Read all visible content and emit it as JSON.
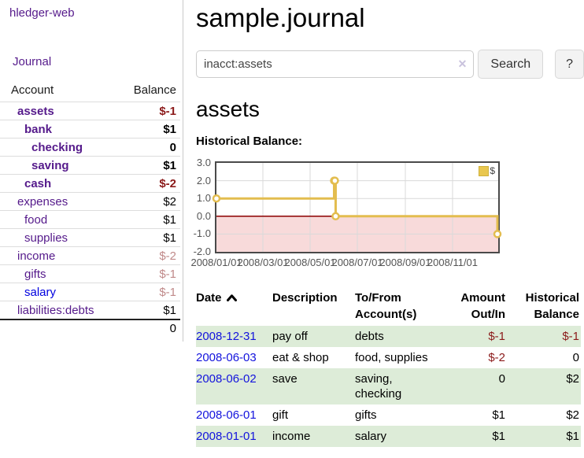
{
  "brand": {
    "title": "hledger-web"
  },
  "nav": {
    "journal": "Journal"
  },
  "sidebar": {
    "headers": {
      "account": "Account",
      "balance": "Balance"
    },
    "accounts": [
      {
        "name": "assets",
        "indent": 1,
        "bold": true,
        "balance": "$-1",
        "balance_class": "neg"
      },
      {
        "name": "bank",
        "indent": 2,
        "bold": true,
        "balance": "$1",
        "balance_class": ""
      },
      {
        "name": "checking",
        "indent": 3,
        "bold": true,
        "balance": "0",
        "balance_class": ""
      },
      {
        "name": "saving",
        "indent": 3,
        "bold": true,
        "balance": "$1",
        "balance_class": ""
      },
      {
        "name": "cash",
        "indent": 2,
        "bold": true,
        "balance": "$-2",
        "balance_class": "neg"
      },
      {
        "name": "expenses",
        "indent": 1,
        "bold": false,
        "balance": "$2",
        "balance_class": ""
      },
      {
        "name": "food",
        "indent": 2,
        "bold": false,
        "balance": "$1",
        "balance_class": ""
      },
      {
        "name": "supplies",
        "indent": 2,
        "bold": false,
        "balance": "$1",
        "balance_class": ""
      },
      {
        "name": "income",
        "indent": 1,
        "bold": false,
        "balance": "$-2",
        "balance_class": "negfaded"
      },
      {
        "name": "gifts",
        "indent": 2,
        "bold": false,
        "balance": "$-1",
        "balance_class": "negfaded"
      },
      {
        "name": "salary",
        "indent": 2,
        "bold": false,
        "balance": "$-1",
        "balance_class": "negfaded",
        "link": "blue"
      },
      {
        "name": "liabilities:debts",
        "indent": 1,
        "bold": false,
        "balance": "$1",
        "balance_class": ""
      }
    ],
    "total": "0"
  },
  "page": {
    "title": "sample.journal"
  },
  "search": {
    "value": "inacct:assets",
    "clear": "✕",
    "submit": "Search",
    "help": "?"
  },
  "account_view": {
    "title": "assets",
    "chart_heading": "Historical Balance:"
  },
  "chart_data": {
    "type": "line",
    "step": true,
    "title": "Historical Balance",
    "series": [
      {
        "name": "$",
        "points": [
          [
            "2008-01-01",
            1
          ],
          [
            "2008-06-01",
            2
          ],
          [
            "2008-06-02",
            2
          ],
          [
            "2008-06-03",
            0
          ],
          [
            "2008-12-31",
            -1
          ]
        ]
      }
    ],
    "x_start": "2008-01-01",
    "x_range_days": [
      0,
      364
    ],
    "x_ticks": [
      {
        "day": 0,
        "label": "2008/01/01"
      },
      {
        "day": 60,
        "label": "2008/03/01"
      },
      {
        "day": 121,
        "label": "2008/05/01"
      },
      {
        "day": 182,
        "label": "2008/07/01"
      },
      {
        "day": 244,
        "label": "2008/09/01"
      },
      {
        "day": 305,
        "label": "2008/11/01"
      }
    ],
    "y_ticks": [
      {
        "value": 3,
        "label": "3.0"
      },
      {
        "value": 2,
        "label": "2.0"
      },
      {
        "value": 1,
        "label": "1.0"
      },
      {
        "value": 0,
        "label": "0.0"
      },
      {
        "value": -1,
        "label": "-1.0"
      },
      {
        "value": -2,
        "label": "-2.0"
      }
    ],
    "ylim": [
      -2,
      3
    ],
    "legend": {
      "label": "$",
      "position": "top-right"
    },
    "colors": {
      "series": "#e3bd4f",
      "negative_region": "#f8dada",
      "zero_line": "#8b0000",
      "grid": "#d9d9d9",
      "border": "#4a4a4a"
    }
  },
  "register": {
    "headers": {
      "date": "Date",
      "description": "Description",
      "accounts": "To/From Account(s)",
      "amount": "Amount Out/In",
      "balance": "Historical Balance"
    },
    "sort": {
      "column": "date",
      "direction": "ascending"
    },
    "rows": [
      {
        "date": "2008-12-31",
        "description": "pay off",
        "accounts": "debts",
        "amount": "$-1",
        "amount_negative": true,
        "balance": "$-1",
        "balance_negative": true
      },
      {
        "date": "2008-06-03",
        "description": "eat & shop",
        "accounts": "food, supplies",
        "amount": "$-2",
        "amount_negative": true,
        "balance": "0",
        "balance_negative": false
      },
      {
        "date": "2008-06-02",
        "description": "save",
        "accounts": "saving,\nchecking",
        "amount": "0",
        "amount_negative": false,
        "balance": "$2",
        "balance_negative": false
      },
      {
        "date": "2008-06-01",
        "description": "gift",
        "accounts": "gifts",
        "amount": "$1",
        "amount_negative": false,
        "balance": "$2",
        "balance_negative": false
      },
      {
        "date": "2008-01-01",
        "description": "income",
        "accounts": "salary",
        "amount": "$1",
        "amount_negative": false,
        "balance": "$1",
        "balance_negative": false
      }
    ]
  },
  "colors": {
    "link_purple": "#551a8b",
    "link_blue": "#0000e0",
    "date_link_blue": "#1313dd",
    "negative_strong": "#8b1a1a",
    "negative_faded": "#c08a8a",
    "row_stripe_green": "#ddecd8"
  }
}
